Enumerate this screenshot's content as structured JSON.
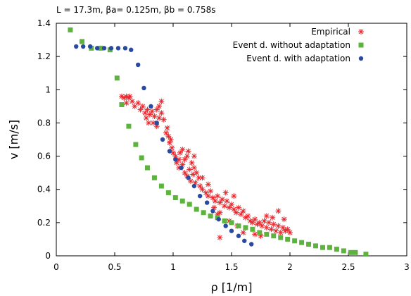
{
  "chart_data": {
    "type": "scatter",
    "title": "L = 17.3m,  βa= 0.125m, βb = 0.758s",
    "xlabel": "ρ [1/m]",
    "ylabel": "v [m/s]",
    "xlim": [
      0,
      3
    ],
    "ylim": [
      0,
      1.4
    ],
    "x_ticks": [
      "0",
      "0.5",
      "1",
      "1.5",
      "2",
      "2.5",
      "3"
    ],
    "y_ticks": [
      "0",
      "0.2",
      "0.4",
      "0.6",
      "0.8",
      "1",
      "1.2",
      "1.4"
    ],
    "grid": false,
    "legend_position": "top-right",
    "series": [
      {
        "name": "Empirical",
        "marker": "star",
        "color": "#e8262c",
        "points": [
          [
            0.56,
            0.96
          ],
          [
            0.58,
            0.95
          ],
          [
            0.6,
            0.96
          ],
          [
            0.62,
            0.95
          ],
          [
            0.63,
            0.96
          ],
          [
            0.6,
            0.92
          ],
          [
            0.65,
            0.93
          ],
          [
            0.67,
            0.9
          ],
          [
            0.7,
            0.92
          ],
          [
            0.72,
            0.88
          ],
          [
            0.74,
            0.9
          ],
          [
            0.76,
            0.86
          ],
          [
            0.78,
            0.88
          ],
          [
            0.8,
            0.85
          ],
          [
            0.82,
            0.87
          ],
          [
            0.84,
            0.84
          ],
          [
            0.86,
            0.88
          ],
          [
            0.88,
            0.83
          ],
          [
            0.9,
            0.86
          ],
          [
            0.92,
            0.82
          ],
          [
            0.77,
            0.83
          ],
          [
            0.79,
            0.8
          ],
          [
            0.83,
            0.8
          ],
          [
            0.86,
            0.78
          ],
          [
            0.88,
            0.9
          ],
          [
            0.9,
            0.93
          ],
          [
            0.94,
            0.74
          ],
          [
            0.96,
            0.72
          ],
          [
            0.97,
            0.68
          ],
          [
            0.99,
            0.65
          ],
          [
            1.0,
            0.62
          ],
          [
            1.02,
            0.6
          ],
          [
            1.03,
            0.56
          ],
          [
            1.05,
            0.58
          ],
          [
            1.06,
            0.62
          ],
          [
            1.08,
            0.55
          ],
          [
            1.1,
            0.58
          ],
          [
            1.12,
            0.6
          ],
          [
            1.14,
            0.52
          ],
          [
            1.16,
            0.56
          ],
          [
            1.18,
            0.53
          ],
          [
            1.2,
            0.5
          ],
          [
            1.22,
            0.47
          ],
          [
            1.1,
            0.5
          ],
          [
            1.12,
            0.48
          ],
          [
            1.15,
            0.45
          ],
          [
            1.17,
            0.49
          ],
          [
            1.19,
            0.44
          ],
          [
            1.23,
            0.42
          ],
          [
            1.25,
            0.4
          ],
          [
            1.28,
            0.38
          ],
          [
            1.3,
            0.36
          ],
          [
            1.32,
            0.39
          ],
          [
            1.34,
            0.35
          ],
          [
            1.36,
            0.33
          ],
          [
            1.38,
            0.36
          ],
          [
            1.4,
            0.32
          ],
          [
            1.42,
            0.34
          ],
          [
            1.44,
            0.3
          ],
          [
            1.46,
            0.33
          ],
          [
            1.48,
            0.29
          ],
          [
            1.5,
            0.31
          ],
          [
            1.52,
            0.28
          ],
          [
            1.54,
            0.26
          ],
          [
            1.56,
            0.29
          ],
          [
            1.58,
            0.25
          ],
          [
            1.6,
            0.27
          ],
          [
            1.62,
            0.23
          ],
          [
            1.64,
            0.24
          ],
          [
            1.66,
            0.21
          ],
          [
            1.68,
            0.2
          ],
          [
            1.7,
            0.22
          ],
          [
            1.72,
            0.19
          ],
          [
            1.74,
            0.2
          ],
          [
            1.76,
            0.18
          ],
          [
            1.78,
            0.21
          ],
          [
            1.8,
            0.17
          ],
          [
            1.82,
            0.2
          ],
          [
            1.84,
            0.16
          ],
          [
            1.86,
            0.19
          ],
          [
            1.88,
            0.15
          ],
          [
            1.9,
            0.18
          ],
          [
            1.92,
            0.14
          ],
          [
            1.94,
            0.17
          ],
          [
            1.96,
            0.15
          ],
          [
            1.98,
            0.16
          ],
          [
            2.0,
            0.14
          ],
          [
            1.35,
            0.29
          ],
          [
            1.4,
            0.26
          ],
          [
            1.45,
            0.38
          ],
          [
            1.38,
            0.25
          ],
          [
            1.55,
            0.18
          ],
          [
            1.6,
            0.14
          ],
          [
            1.7,
            0.13
          ],
          [
            1.75,
            0.12
          ],
          [
            1.8,
            0.24
          ],
          [
            1.85,
            0.23
          ],
          [
            1.9,
            0.27
          ],
          [
            1.95,
            0.22
          ],
          [
            1.4,
            0.11
          ],
          [
            1.48,
            0.21
          ],
          [
            1.52,
            0.36
          ],
          [
            1.3,
            0.43
          ],
          [
            1.25,
            0.47
          ],
          [
            1.18,
            0.6
          ],
          [
            1.13,
            0.63
          ],
          [
            1.08,
            0.64
          ],
          [
            1.05,
            0.53
          ],
          [
            0.98,
            0.7
          ],
          [
            0.95,
            0.77
          ]
        ]
      },
      {
        "name": "Event d. without adaptation",
        "marker": "square",
        "color": "#5db43d",
        "points": [
          [
            0.12,
            1.36
          ],
          [
            0.22,
            1.29
          ],
          [
            0.3,
            1.25
          ],
          [
            0.38,
            1.25
          ],
          [
            0.46,
            1.24
          ],
          [
            0.52,
            1.07
          ],
          [
            0.56,
            0.91
          ],
          [
            0.62,
            0.78
          ],
          [
            0.68,
            0.67
          ],
          [
            0.73,
            0.59
          ],
          [
            0.78,
            0.53
          ],
          [
            0.84,
            0.47
          ],
          [
            0.9,
            0.42
          ],
          [
            0.96,
            0.38
          ],
          [
            1.02,
            0.35
          ],
          [
            1.08,
            0.33
          ],
          [
            1.14,
            0.31
          ],
          [
            1.2,
            0.28
          ],
          [
            1.26,
            0.26
          ],
          [
            1.32,
            0.24
          ],
          [
            1.38,
            0.23
          ],
          [
            1.44,
            0.21
          ],
          [
            1.5,
            0.2
          ],
          [
            1.56,
            0.18
          ],
          [
            1.62,
            0.17
          ],
          [
            1.68,
            0.16
          ],
          [
            1.74,
            0.14
          ],
          [
            1.8,
            0.13
          ],
          [
            1.86,
            0.12
          ],
          [
            1.92,
            0.11
          ],
          [
            1.98,
            0.1
          ],
          [
            2.04,
            0.09
          ],
          [
            2.1,
            0.08
          ],
          [
            2.16,
            0.07
          ],
          [
            2.22,
            0.06
          ],
          [
            2.28,
            0.05
          ],
          [
            2.34,
            0.05
          ],
          [
            2.4,
            0.04
          ],
          [
            2.46,
            0.03
          ],
          [
            2.52,
            0.02
          ],
          [
            2.56,
            0.02
          ],
          [
            2.65,
            0.01
          ]
        ]
      },
      {
        "name": "Event d. with adaptation",
        "marker": "circle",
        "color": "#2a4aa0",
        "points": [
          [
            0.17,
            1.26
          ],
          [
            0.23,
            1.26
          ],
          [
            0.29,
            1.26
          ],
          [
            0.35,
            1.25
          ],
          [
            0.41,
            1.25
          ],
          [
            0.47,
            1.25
          ],
          [
            0.53,
            1.25
          ],
          [
            0.59,
            1.25
          ],
          [
            0.64,
            1.24
          ],
          [
            0.7,
            1.15
          ],
          [
            0.75,
            1.01
          ],
          [
            0.81,
            0.9
          ],
          [
            0.86,
            0.8
          ],
          [
            0.91,
            0.7
          ],
          [
            0.97,
            0.63
          ],
          [
            1.02,
            0.58
          ],
          [
            1.07,
            0.53
          ],
          [
            1.13,
            0.47
          ],
          [
            1.18,
            0.42
          ],
          [
            1.23,
            0.36
          ],
          [
            1.29,
            0.32
          ],
          [
            1.34,
            0.27
          ],
          [
            1.39,
            0.22
          ],
          [
            1.45,
            0.18
          ],
          [
            1.5,
            0.15
          ],
          [
            1.56,
            0.12
          ],
          [
            1.61,
            0.09
          ],
          [
            1.67,
            0.07
          ]
        ]
      }
    ]
  }
}
